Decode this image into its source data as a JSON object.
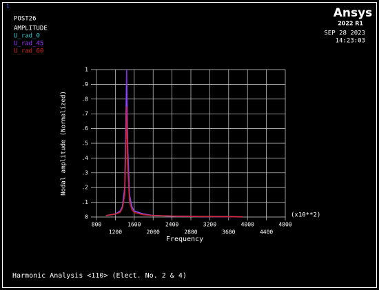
{
  "window_number": "1",
  "program": "POST26",
  "logo": "Ansys",
  "version": "2022 R1",
  "date": "SEP 28 2023",
  "time": "14:23:03",
  "footer": "Harmonic Analysis <110> (Elect. No. 2 & 4)",
  "chart_data": {
    "type": "line",
    "title": "AMPLITUDE",
    "x_label": "Frequency",
    "y_label": "Nodal amplitude (Normalized)",
    "x_multiplier": "(x10**2)",
    "x": [
      1000,
      1200,
      1300,
      1350,
      1400,
      1420,
      1440,
      1460,
      1500,
      1550,
      1600,
      1800,
      2000,
      2500,
      3000,
      3500,
      3900
    ],
    "series": [
      {
        "name": "U_rad_0",
        "color": "#33cccc",
        "values": [
          0.01,
          0.02,
          0.04,
          0.07,
          0.2,
          0.55,
          0.9,
          0.45,
          0.14,
          0.07,
          0.04,
          0.02,
          0.01,
          0.005,
          0.003,
          0.002,
          0.001
        ]
      },
      {
        "name": "U_rad_45",
        "color": "#9933ff",
        "values": [
          0.01,
          0.02,
          0.04,
          0.07,
          0.2,
          0.6,
          1,
          0.5,
          0.15,
          0.07,
          0.04,
          0.02,
          0.01,
          0.005,
          0.003,
          0.002,
          0.001
        ]
      },
      {
        "name": "U_rad_60",
        "color": "#dd2222",
        "values": [
          0.01,
          0.02,
          0.03,
          0.06,
          0.15,
          0.45,
          0.75,
          0.35,
          0.1,
          0.05,
          0.03,
          0.015,
          0.01,
          0.005,
          0.003,
          0.002,
          0.001
        ]
      }
    ],
    "xlim": [
      800,
      4800
    ],
    "xticks": [
      800,
      1200,
      1600,
      2000,
      2400,
      2800,
      3200,
      3600,
      4000,
      4400,
      4800
    ],
    "ylim": [
      0,
      1
    ],
    "yticks": [
      0,
      {
        "value": 0.1,
        "label": ".1"
      },
      {
        "value": 0.2,
        "label": ".2"
      },
      {
        "value": 0.3,
        "label": ".3"
      },
      {
        "value": 0.4,
        "label": ".4"
      },
      {
        "value": 0.5,
        "label": ".5"
      },
      {
        "value": 0.6,
        "label": ".6"
      },
      {
        "value": 0.7,
        "label": ".7"
      },
      {
        "value": 0.8,
        "label": ".8"
      },
      {
        "value": 0.9,
        "label": ".9"
      },
      1
    ],
    "grid": true
  }
}
